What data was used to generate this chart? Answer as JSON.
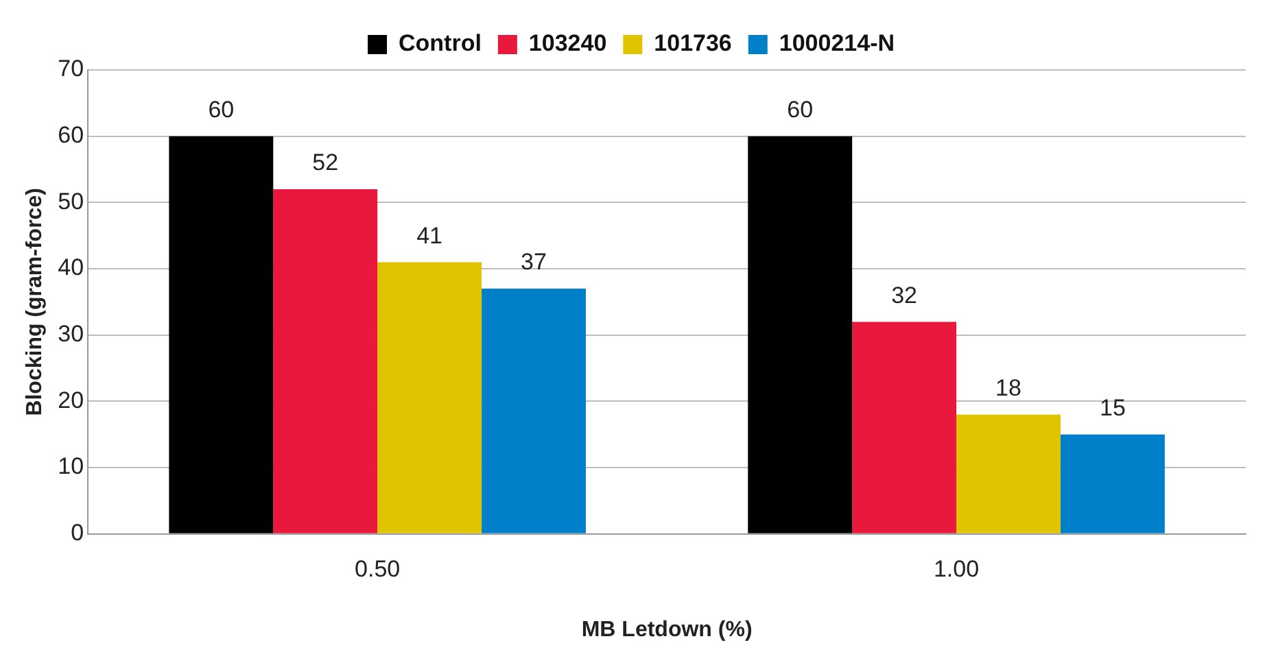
{
  "chart_data": {
    "type": "bar",
    "xlabel": "MB Letdown (%)",
    "ylabel": "Blocking (gram-force)",
    "categories": [
      "0.50",
      "1.00"
    ],
    "series": [
      {
        "name": "Control",
        "color": "#000000",
        "values": [
          60,
          60
        ]
      },
      {
        "name": "103240",
        "color": "#e8193c",
        "values": [
          52,
          32
        ]
      },
      {
        "name": "101736",
        "color": "#e0c400",
        "values": [
          41,
          18
        ]
      },
      {
        "name": "1000214-N",
        "color": "#0080c8",
        "values": [
          37,
          15
        ]
      }
    ],
    "ylim": [
      0,
      70
    ],
    "yticks": [
      0,
      10,
      20,
      30,
      40,
      50,
      60,
      70
    ],
    "grid": "y",
    "legend": "top",
    "data_labels": true
  }
}
